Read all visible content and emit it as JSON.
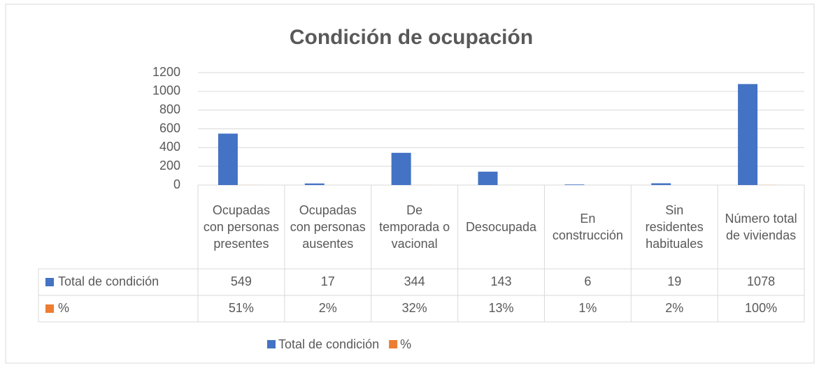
{
  "chart_data": {
    "type": "bar",
    "title": "Condición de ocupación",
    "categories": [
      "Ocupadas con personas presentes",
      "Ocupadas con personas ausentes",
      "De temporada o vacional",
      "Desocupada",
      "En construcción",
      "Sin residentes habituales",
      "Número total de viviendas"
    ],
    "series": [
      {
        "name": "Total de condición",
        "color": "#4472c4",
        "values": [
          549,
          17,
          344,
          143,
          6,
          19,
          1078
        ]
      },
      {
        "name": "%",
        "color": "#ed7d31",
        "values": [
          0.51,
          0.02,
          0.32,
          0.13,
          0.01,
          0.02,
          1
        ],
        "value_labels": [
          "51%",
          "2%",
          "32%",
          "13%",
          "1%",
          "2%",
          "100%"
        ]
      }
    ],
    "ylim": [
      0,
      1200
    ],
    "yticks": [
      0,
      200,
      400,
      600,
      800,
      1000,
      1200
    ],
    "grid": true,
    "legend": "bottom"
  }
}
